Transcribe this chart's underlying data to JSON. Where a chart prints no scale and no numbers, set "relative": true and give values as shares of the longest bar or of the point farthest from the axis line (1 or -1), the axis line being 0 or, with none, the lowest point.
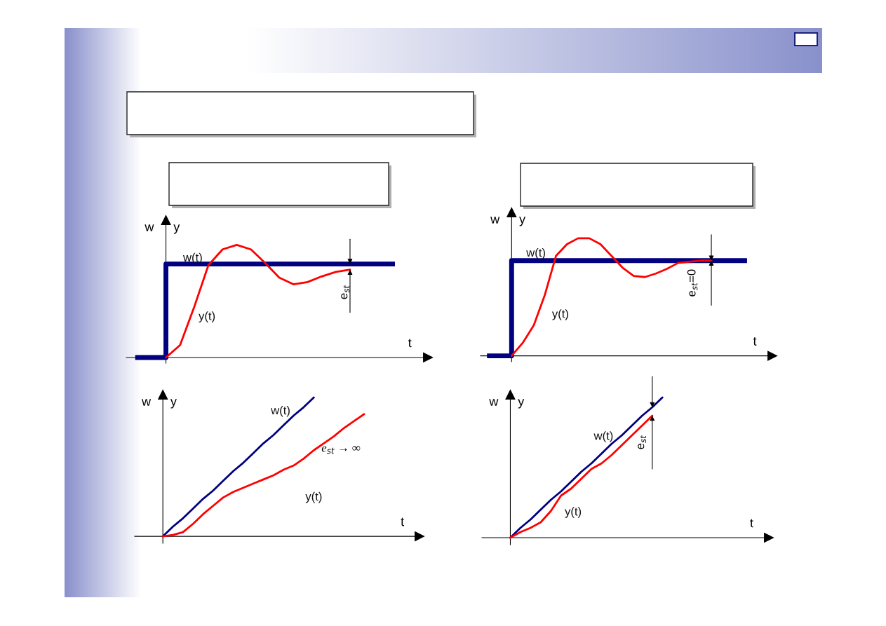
{
  "chart_data": [
    {
      "type": "line",
      "relative": true,
      "xlabel": "t",
      "annotations": [
        "w",
        "y",
        "e$_{st}$"
      ],
      "categories": [
        null,
        null,
        null,
        null,
        null,
        null,
        null,
        null,
        null,
        null,
        null,
        null,
        null,
        null,
        null,
        null,
        null,
        null,
        null,
        null,
        null
      ],
      "series": [
        {
          "name": "w(t)",
          "type": "step",
          "color": "#000080",
          "values": [
            0,
            0,
            0.83,
            0.83,
            0.83,
            0.83,
            0.83,
            0.83,
            0.83,
            0.83,
            0.83,
            0.83,
            0.83,
            0.83,
            0.83,
            0.83,
            0.83,
            0.83,
            0.83,
            null,
            null
          ]
        },
        {
          "name": "y(t)",
          "color": "#ff0000",
          "values": [
            null,
            null,
            0,
            0.11,
            0.45,
            0.82,
            0.96,
            1,
            0.96,
            0.84,
            0.71,
            0.65,
            0.67,
            0.72,
            0.76,
            0.78,
            null,
            null,
            null,
            null,
            null
          ]
        }
      ]
    },
    {
      "type": "line",
      "relative": true,
      "xlabel": "t",
      "annotations": [
        "w",
        "y",
        "e$_{st}$=0"
      ],
      "categories": [
        null,
        null,
        null,
        null,
        null,
        null,
        null,
        null,
        null,
        null,
        null,
        null,
        null,
        null,
        null,
        null,
        null,
        null,
        null,
        null,
        null,
        null,
        null,
        null,
        null,
        null
      ],
      "series": [
        {
          "name": "w(t)",
          "type": "step",
          "color": "#000080",
          "values": [
            0,
            0,
            0.81,
            0.81,
            0.81,
            0.81,
            0.81,
            0.81,
            0.81,
            0.81,
            0.81,
            0.81,
            0.81,
            0.81,
            0.81,
            0.81,
            0.81,
            0.81,
            0.81,
            0.81,
            0.81,
            0.81,
            0.81,
            0.81,
            null,
            null
          ]
        },
        {
          "name": "y(t)",
          "color": "#ff0000",
          "values": [
            null,
            null,
            0,
            0.11,
            0.26,
            0.52,
            0.85,
            0.95,
            1,
            1,
            0.95,
            0.85,
            0.75,
            0.68,
            0.67,
            0.7,
            0.74,
            0.79,
            0.8,
            0.81,
            0.81,
            null,
            null,
            null,
            null,
            null
          ]
        }
      ]
    },
    {
      "type": "line",
      "relative": true,
      "xlabel": "t",
      "annotations": [
        "w",
        "y",
        "e$_{st}$ → ∞"
      ],
      "categories": [
        null,
        null,
        null,
        null,
        null,
        null,
        null,
        null,
        null,
        null,
        null,
        null,
        null,
        null,
        null,
        null,
        null,
        null,
        null,
        null,
        null,
        null,
        null,
        null,
        null,
        null
      ],
      "series": [
        {
          "name": "w(t)",
          "color": "#000080",
          "values": [
            0,
            0.07,
            0.13,
            0.2,
            0.27,
            0.33,
            0.4,
            0.47,
            0.53,
            0.6,
            0.67,
            0.73,
            0.8,
            0.87,
            0.93,
            1,
            null,
            null,
            null,
            null,
            null,
            null,
            null,
            null,
            null,
            null
          ]
        },
        {
          "name": "y(t)",
          "color": "#ff0000",
          "values": [
            0,
            0.01,
            0.03,
            0.09,
            0.16,
            0.22,
            0.28,
            0.32,
            0.35,
            0.38,
            0.41,
            0.44,
            0.48,
            0.51,
            0.56,
            0.62,
            0.67,
            0.72,
            0.78,
            0.83,
            0.88,
            null,
            null,
            null,
            null,
            null
          ]
        }
      ]
    },
    {
      "type": "line",
      "relative": true,
      "xlabel": "t",
      "annotations": [
        "w",
        "y",
        "e$_{st}$"
      ],
      "categories": [
        null,
        null,
        null,
        null,
        null,
        null,
        null,
        null,
        null,
        null,
        null,
        null,
        null,
        null,
        null,
        null,
        null,
        null,
        null,
        null,
        null,
        null,
        null,
        null,
        null,
        null
      ],
      "series": [
        {
          "name": "w(t)",
          "color": "#000080",
          "values": [
            0,
            0.07,
            0.13,
            0.2,
            0.27,
            0.33,
            0.4,
            0.47,
            0.53,
            0.6,
            0.67,
            0.73,
            0.8,
            0.87,
            0.93,
            1,
            null,
            null,
            null,
            null,
            null,
            null,
            null,
            null,
            null,
            null
          ]
        },
        {
          "name": "y(t)",
          "color": "#ff0000",
          "values": [
            0,
            0.04,
            0.07,
            0.11,
            0.19,
            0.3,
            0.35,
            0.42,
            0.49,
            0.53,
            0.59,
            0.66,
            0.73,
            0.8,
            0.87,
            null,
            null,
            null,
            null,
            null,
            null,
            null,
            null,
            null,
            null,
            null
          ]
        }
      ]
    }
  ]
}
